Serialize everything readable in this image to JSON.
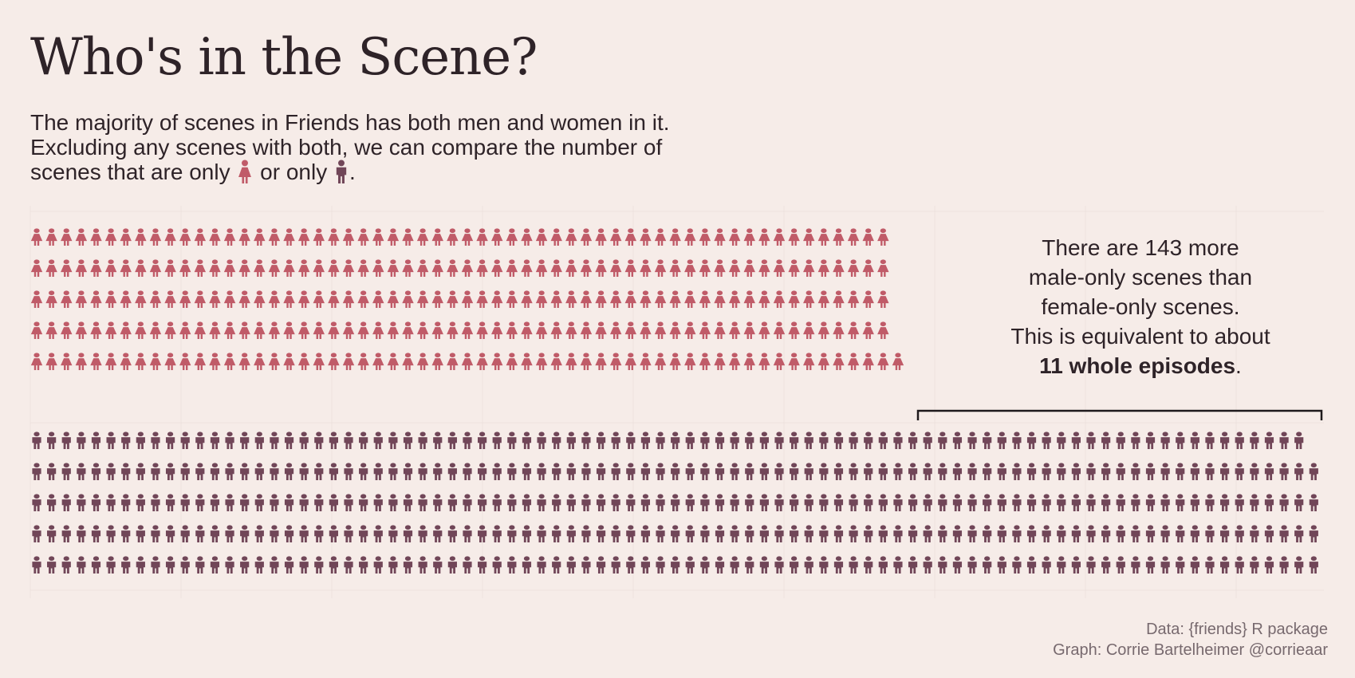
{
  "title": "Who's in the Scene?",
  "subtitle": {
    "line1": "The majority of scenes in Friends has both men and women in it.",
    "line2": "Excluding any scenes with both, we can compare the number of",
    "line3_before": "scenes that are only",
    "line3_middle": "or only",
    "line3_end": ".",
    "female_icon": "female-person-icon",
    "male_icon": "male-person-icon"
  },
  "annotation": {
    "line1": "There are 143 more",
    "line2": "male-only scenes than",
    "line3": "female-only scenes.",
    "line4": "This is equivalent to about",
    "bold": "11 whole episodes",
    "end": "."
  },
  "caption": {
    "line1": "Data: {friends} R package",
    "line2": "Graph: Corrie Bartelheimer @corrieaar"
  },
  "colors": {
    "background": "#f6ece8",
    "female": "#c05b68",
    "male": "#714658",
    "grid": "#ede2de",
    "bracket": "#1f1a1c"
  },
  "chart_data": {
    "type": "pictogram",
    "series": [
      {
        "name": "female-only",
        "icon": "female-person-icon",
        "rows": [
          58,
          58,
          58,
          58,
          59
        ],
        "total": 291
      },
      {
        "name": "male-only",
        "icon": "male-person-icon",
        "rows": [
          86,
          87,
          87,
          87,
          87
        ],
        "total": 434
      }
    ],
    "difference": 143,
    "icons_per_row_max": 87,
    "grid": true
  }
}
